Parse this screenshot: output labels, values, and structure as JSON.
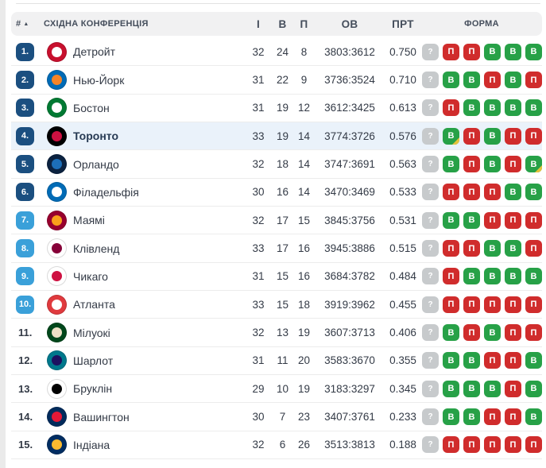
{
  "colors": {
    "green": "#27a147",
    "red": "#d02c2c",
    "unknown": "#c7cacc",
    "ot": "#e6c23c",
    "navy": "#1b4f80",
    "sky": "#3aa0d9",
    "highlight": "#eaf2fa",
    "headerBg": "#f1f1f2",
    "headerText": "#454e5c",
    "text": "#333a46",
    "highlightText": "#273a53",
    "plainRank": "#333a46",
    "sep": "#ececec",
    "leftStrip": "#eaeaea",
    "topLine": "#e2e2e2"
  },
  "header": {
    "rank_label": "#",
    "sort_icon": "▲",
    "conference_label": "СХІДНА КОНФЕРЕНЦІЯ",
    "columns": {
      "games": "І",
      "wins": "В",
      "losses": "П",
      "points": "ОВ",
      "pct": "ПРТ",
      "form": "ФОРМА"
    }
  },
  "standings": {
    "rows": [
      {
        "rank": "1.",
        "rank_style": "navy",
        "team": "Детройт",
        "logo": {
          "name": "detroit-pistons-logo",
          "outer": "#c8102e",
          "inner": "#ffffff"
        },
        "games": "32",
        "wins": "24",
        "losses": "8",
        "points": "3803:3612",
        "pct": "0.750",
        "highlighted": false,
        "form": [
          {
            "label": "?",
            "result": "unknown"
          },
          {
            "label": "П",
            "result": "loss"
          },
          {
            "label": "П",
            "result": "loss"
          },
          {
            "label": "В",
            "result": "win"
          },
          {
            "label": "В",
            "result": "win"
          },
          {
            "label": "В",
            "result": "win"
          }
        ]
      },
      {
        "rank": "2.",
        "rank_style": "navy",
        "team": "Нью-Йорк",
        "logo": {
          "name": "new-york-knicks-logo",
          "outer": "#006bb6",
          "inner": "#f58426"
        },
        "games": "31",
        "wins": "22",
        "losses": "9",
        "points": "3736:3524",
        "pct": "0.710",
        "highlighted": false,
        "form": [
          {
            "label": "?",
            "result": "unknown"
          },
          {
            "label": "В",
            "result": "win"
          },
          {
            "label": "В",
            "result": "win"
          },
          {
            "label": "П",
            "result": "loss"
          },
          {
            "label": "В",
            "result": "win"
          },
          {
            "label": "П",
            "result": "loss"
          }
        ]
      },
      {
        "rank": "3.",
        "rank_style": "navy",
        "team": "Бостон",
        "logo": {
          "name": "boston-celtics-logo",
          "outer": "#007a33",
          "inner": "#ffffff"
        },
        "games": "31",
        "wins": "19",
        "losses": "12",
        "points": "3612:3425",
        "pct": "0.613",
        "highlighted": false,
        "form": [
          {
            "label": "?",
            "result": "unknown"
          },
          {
            "label": "П",
            "result": "loss"
          },
          {
            "label": "В",
            "result": "win"
          },
          {
            "label": "В",
            "result": "win"
          },
          {
            "label": "В",
            "result": "win"
          },
          {
            "label": "В",
            "result": "win"
          }
        ]
      },
      {
        "rank": "4.",
        "rank_style": "navy",
        "team": "Торонто",
        "logo": {
          "name": "toronto-raptors-logo",
          "outer": "#000000",
          "inner": "#ce1141"
        },
        "games": "33",
        "wins": "19",
        "losses": "14",
        "points": "3774:3726",
        "pct": "0.576",
        "highlighted": true,
        "form": [
          {
            "label": "?",
            "result": "unknown"
          },
          {
            "label": "В",
            "result": "win",
            "ot": true
          },
          {
            "label": "П",
            "result": "loss"
          },
          {
            "label": "В",
            "result": "win"
          },
          {
            "label": "П",
            "result": "loss"
          },
          {
            "label": "П",
            "result": "loss"
          }
        ]
      },
      {
        "rank": "5.",
        "rank_style": "navy",
        "team": "Орландо",
        "logo": {
          "name": "orlando-magic-logo",
          "outer": "#0b2240",
          "inner": "#1d6fb8"
        },
        "games": "32",
        "wins": "18",
        "losses": "14",
        "points": "3747:3691",
        "pct": "0.563",
        "highlighted": false,
        "form": [
          {
            "label": "?",
            "result": "unknown"
          },
          {
            "label": "В",
            "result": "win"
          },
          {
            "label": "П",
            "result": "loss"
          },
          {
            "label": "В",
            "result": "win"
          },
          {
            "label": "П",
            "result": "loss"
          },
          {
            "label": "В",
            "result": "win",
            "ot": true
          }
        ]
      },
      {
        "rank": "6.",
        "rank_style": "navy",
        "team": "Філадельфія",
        "logo": {
          "name": "philadelphia-76ers-logo",
          "outer": "#006bb6",
          "inner": "#ffffff"
        },
        "games": "30",
        "wins": "16",
        "losses": "14",
        "points": "3470:3469",
        "pct": "0.533",
        "highlighted": false,
        "form": [
          {
            "label": "?",
            "result": "unknown"
          },
          {
            "label": "П",
            "result": "loss"
          },
          {
            "label": "П",
            "result": "loss"
          },
          {
            "label": "П",
            "result": "loss"
          },
          {
            "label": "В",
            "result": "win"
          },
          {
            "label": "В",
            "result": "win"
          }
        ]
      },
      {
        "rank": "7.",
        "rank_style": "sky",
        "team": "Маямі",
        "logo": {
          "name": "miami-heat-logo",
          "outer": "#98002e",
          "inner": "#f9a01b"
        },
        "games": "32",
        "wins": "17",
        "losses": "15",
        "points": "3845:3756",
        "pct": "0.531",
        "highlighted": false,
        "form": [
          {
            "label": "?",
            "result": "unknown"
          },
          {
            "label": "В",
            "result": "win"
          },
          {
            "label": "В",
            "result": "win"
          },
          {
            "label": "П",
            "result": "loss"
          },
          {
            "label": "П",
            "result": "loss"
          },
          {
            "label": "П",
            "result": "loss"
          }
        ]
      },
      {
        "rank": "8.",
        "rank_style": "sky",
        "team": "Клівленд",
        "logo": {
          "name": "cleveland-cavaliers-logo",
          "outer": "#ffffff",
          "inner": "#860038"
        },
        "games": "33",
        "wins": "17",
        "losses": "16",
        "points": "3945:3886",
        "pct": "0.515",
        "highlighted": false,
        "form": [
          {
            "label": "?",
            "result": "unknown"
          },
          {
            "label": "П",
            "result": "loss"
          },
          {
            "label": "П",
            "result": "loss"
          },
          {
            "label": "В",
            "result": "win"
          },
          {
            "label": "В",
            "result": "win"
          },
          {
            "label": "П",
            "result": "loss"
          }
        ]
      },
      {
        "rank": "9.",
        "rank_style": "sky",
        "team": "Чикаго",
        "logo": {
          "name": "chicago-bulls-logo",
          "outer": "#ffffff",
          "inner": "#ce1141"
        },
        "games": "31",
        "wins": "15",
        "losses": "16",
        "points": "3684:3782",
        "pct": "0.484",
        "highlighted": false,
        "form": [
          {
            "label": "?",
            "result": "unknown"
          },
          {
            "label": "П",
            "result": "loss"
          },
          {
            "label": "В",
            "result": "win"
          },
          {
            "label": "В",
            "result": "win"
          },
          {
            "label": "В",
            "result": "win"
          },
          {
            "label": "В",
            "result": "win"
          }
        ]
      },
      {
        "rank": "10.",
        "rank_style": "sky",
        "team": "Атланта",
        "logo": {
          "name": "atlanta-hawks-logo",
          "outer": "#e03a3e",
          "inner": "#ffffff"
        },
        "games": "33",
        "wins": "15",
        "losses": "18",
        "points": "3919:3962",
        "pct": "0.455",
        "highlighted": false,
        "form": [
          {
            "label": "?",
            "result": "unknown"
          },
          {
            "label": "П",
            "result": "loss"
          },
          {
            "label": "П",
            "result": "loss"
          },
          {
            "label": "П",
            "result": "loss"
          },
          {
            "label": "П",
            "result": "loss"
          },
          {
            "label": "П",
            "result": "loss"
          }
        ]
      },
      {
        "rank": "11.",
        "rank_style": "plain",
        "team": "Мілуокі",
        "logo": {
          "name": "milwaukee-bucks-logo",
          "outer": "#00471b",
          "inner": "#eee1c6"
        },
        "games": "32",
        "wins": "13",
        "losses": "19",
        "points": "3607:3713",
        "pct": "0.406",
        "highlighted": false,
        "form": [
          {
            "label": "?",
            "result": "unknown"
          },
          {
            "label": "В",
            "result": "win"
          },
          {
            "label": "П",
            "result": "loss"
          },
          {
            "label": "В",
            "result": "win"
          },
          {
            "label": "П",
            "result": "loss"
          },
          {
            "label": "П",
            "result": "loss"
          }
        ]
      },
      {
        "rank": "12.",
        "rank_style": "plain",
        "team": "Шарлот",
        "logo": {
          "name": "charlotte-hornets-logo",
          "outer": "#00788c",
          "inner": "#1d1160"
        },
        "games": "31",
        "wins": "11",
        "losses": "20",
        "points": "3583:3670",
        "pct": "0.355",
        "highlighted": false,
        "form": [
          {
            "label": "?",
            "result": "unknown"
          },
          {
            "label": "В",
            "result": "win"
          },
          {
            "label": "В",
            "result": "win"
          },
          {
            "label": "П",
            "result": "loss"
          },
          {
            "label": "П",
            "result": "loss"
          },
          {
            "label": "В",
            "result": "win"
          }
        ]
      },
      {
        "rank": "13.",
        "rank_style": "plain",
        "team": "Бруклін",
        "logo": {
          "name": "brooklyn-nets-logo",
          "outer": "#ffffff",
          "inner": "#000000"
        },
        "games": "29",
        "wins": "10",
        "losses": "19",
        "points": "3183:3297",
        "pct": "0.345",
        "highlighted": false,
        "form": [
          {
            "label": "?",
            "result": "unknown"
          },
          {
            "label": "В",
            "result": "win"
          },
          {
            "label": "В",
            "result": "win"
          },
          {
            "label": "В",
            "result": "win"
          },
          {
            "label": "П",
            "result": "loss"
          },
          {
            "label": "В",
            "result": "win"
          }
        ]
      },
      {
        "rank": "14.",
        "rank_style": "plain",
        "team": "Вашингтон",
        "logo": {
          "name": "washington-wizards-logo",
          "outer": "#002b5c",
          "inner": "#e31837"
        },
        "games": "30",
        "wins": "7",
        "losses": "23",
        "points": "3407:3761",
        "pct": "0.233",
        "highlighted": false,
        "form": [
          {
            "label": "?",
            "result": "unknown"
          },
          {
            "label": "В",
            "result": "win"
          },
          {
            "label": "В",
            "result": "win"
          },
          {
            "label": "П",
            "result": "loss"
          },
          {
            "label": "П",
            "result": "loss"
          },
          {
            "label": "В",
            "result": "win"
          }
        ]
      },
      {
        "rank": "15.",
        "rank_style": "plain",
        "team": "Індіана",
        "logo": {
          "name": "indiana-pacers-logo",
          "outer": "#002d62",
          "inner": "#fdbb30"
        },
        "games": "32",
        "wins": "6",
        "losses": "26",
        "points": "3513:3813",
        "pct": "0.188",
        "highlighted": false,
        "form": [
          {
            "label": "?",
            "result": "unknown"
          },
          {
            "label": "П",
            "result": "loss"
          },
          {
            "label": "П",
            "result": "loss"
          },
          {
            "label": "П",
            "result": "loss"
          },
          {
            "label": "П",
            "result": "loss"
          },
          {
            "label": "П",
            "result": "loss"
          }
        ]
      }
    ]
  }
}
